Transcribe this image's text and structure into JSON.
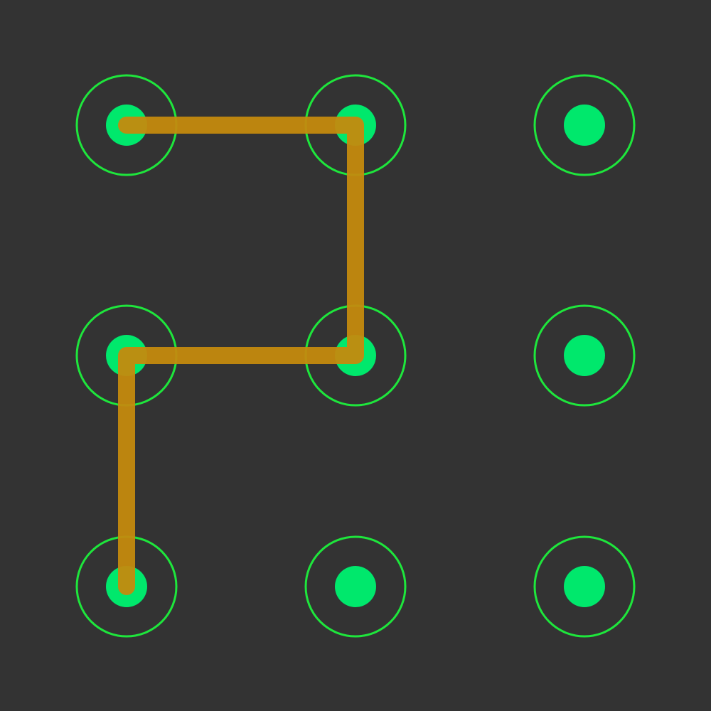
{
  "pattern_lock": {
    "grid": {
      "rows": 3,
      "cols": 3
    },
    "colors": {
      "background": "#333333",
      "ring": "#1ee63c",
      "dot": "#00e86c",
      "path": "#c48a0e",
      "path_opacity": 0.95
    },
    "nodes": [
      {
        "id": 1,
        "row": 0,
        "col": 0,
        "selected": true
      },
      {
        "id": 2,
        "row": 0,
        "col": 1,
        "selected": true
      },
      {
        "id": 3,
        "row": 0,
        "col": 2,
        "selected": false
      },
      {
        "id": 4,
        "row": 1,
        "col": 0,
        "selected": true
      },
      {
        "id": 5,
        "row": 1,
        "col": 1,
        "selected": true
      },
      {
        "id": 6,
        "row": 1,
        "col": 2,
        "selected": false
      },
      {
        "id": 7,
        "row": 2,
        "col": 0,
        "selected": true
      },
      {
        "id": 8,
        "row": 2,
        "col": 1,
        "selected": false
      },
      {
        "id": 9,
        "row": 2,
        "col": 2,
        "selected": false
      }
    ],
    "path_sequence": [
      1,
      2,
      5,
      4,
      7
    ]
  }
}
